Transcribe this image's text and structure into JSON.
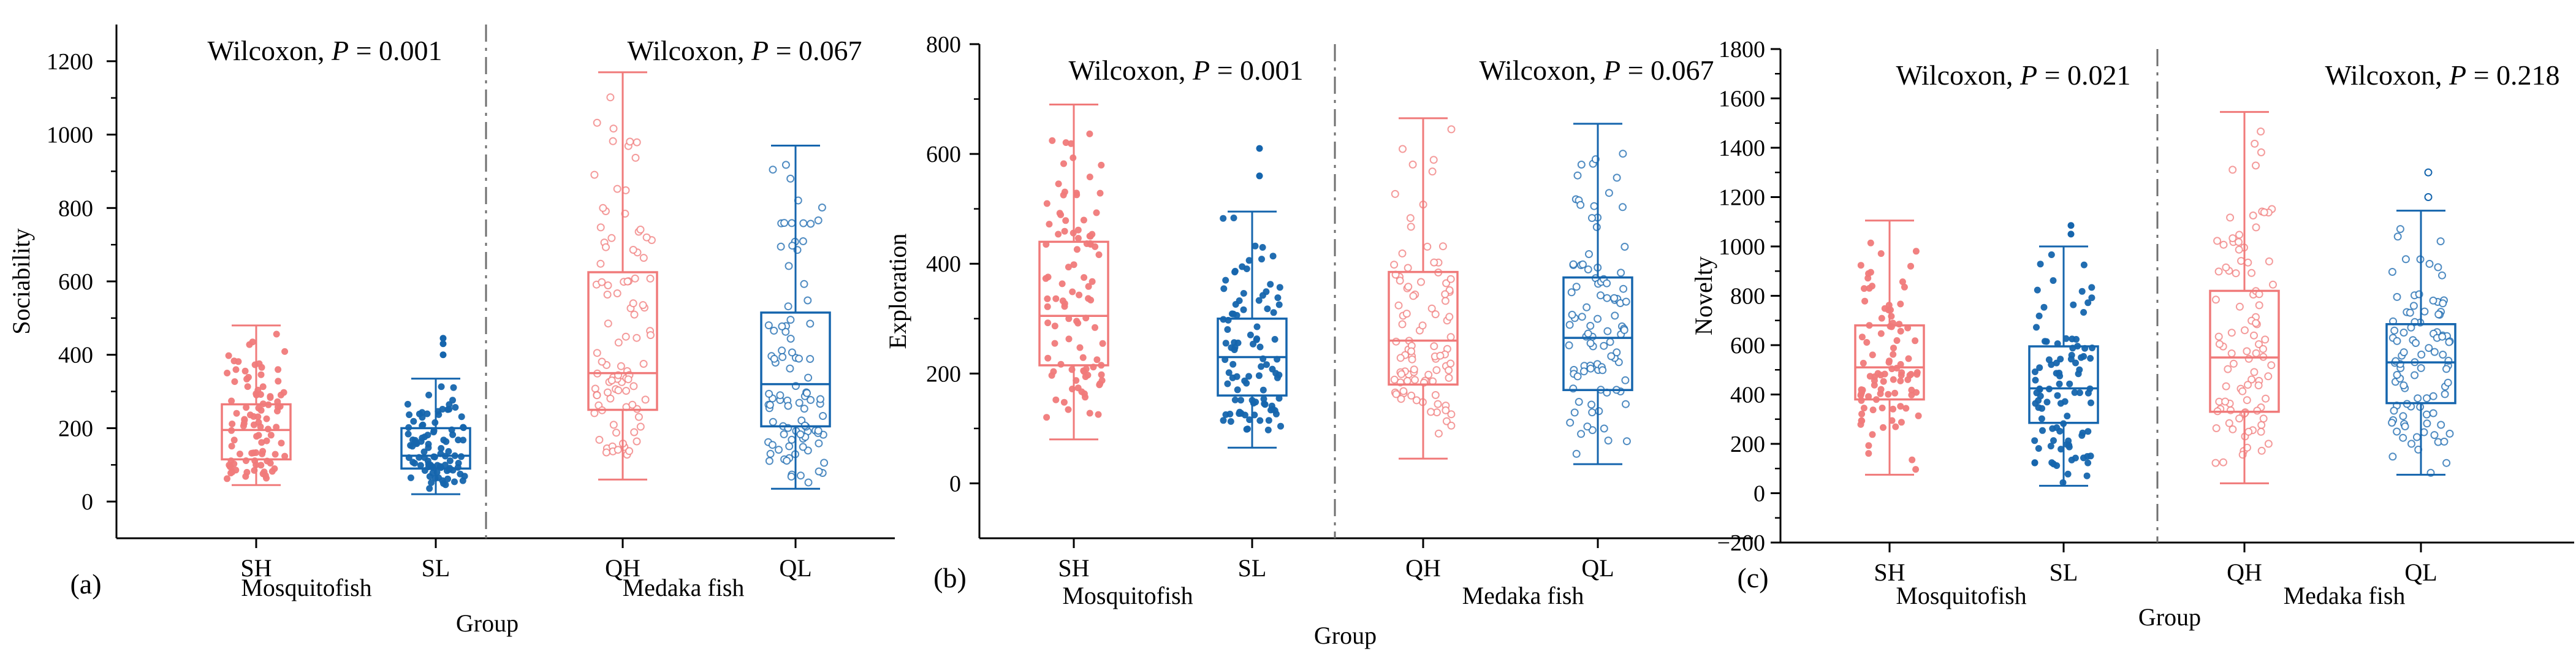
{
  "chart_data": [
    {
      "type": "box",
      "panel_label": "(a)",
      "ylabel": "Sociability",
      "xlabel": "Group",
      "ylim": [
        -100,
        1300
      ],
      "yticks": [
        0,
        200,
        400,
        600,
        800,
        1000,
        1200
      ],
      "yticks_text": [
        "0",
        "200",
        "400",
        "600",
        "800",
        "1000",
        "1200"
      ],
      "categories": [
        "SH",
        "SL",
        "QH",
        "QL"
      ],
      "group_labels": [
        "Mosquitofish",
        "Medaka fish"
      ],
      "annotations": [
        {
          "prefix": "Wilcoxon, ",
          "italic": "P",
          "suffix": " = 0.001"
        },
        {
          "prefix": "Wilcoxon, ",
          "italic": "P",
          "suffix": " = 0.067"
        }
      ],
      "boxes": [
        {
          "min": 45,
          "q1": 115,
          "median": 195,
          "q3": 265,
          "max": 480
        },
        {
          "min": 20,
          "q1": 90,
          "median": 125,
          "q3": 200,
          "max": 335
        },
        {
          "min": 60,
          "q1": 250,
          "median": 350,
          "q3": 625,
          "max": 1170
        },
        {
          "min": 35,
          "q1": 205,
          "median": 320,
          "q3": 515,
          "max": 970
        }
      ],
      "outliers": [
        [],
        [
          400,
          430,
          445
        ],
        [],
        []
      ]
    },
    {
      "type": "box",
      "panel_label": "(b)",
      "ylabel": "Exploration",
      "xlabel": "Group",
      "ylim": [
        -100,
        800
      ],
      "yticks": [
        0,
        200,
        400,
        600,
        800
      ],
      "yticks_text": [
        "0",
        "200",
        "400",
        "600",
        "800"
      ],
      "categories": [
        "SH",
        "SL",
        "QH",
        "QL"
      ],
      "group_labels": [
        "Mosquitofish",
        "Medaka fish"
      ],
      "annotations": [
        {
          "prefix": "Wilcoxon, ",
          "italic": "P",
          "suffix": " = 0.001"
        },
        {
          "prefix": "Wilcoxon, ",
          "italic": "P",
          "suffix": " = 0.067"
        }
      ],
      "boxes": [
        {
          "min": 80,
          "q1": 215,
          "median": 305,
          "q3": 440,
          "max": 690
        },
        {
          "min": 65,
          "q1": 160,
          "median": 230,
          "q3": 300,
          "max": 495
        },
        {
          "min": 45,
          "q1": 180,
          "median": 260,
          "q3": 385,
          "max": 665
        },
        {
          "min": 35,
          "q1": 170,
          "median": 265,
          "q3": 375,
          "max": 655
        }
      ],
      "outliers": [
        [],
        [
          560,
          610
        ],
        [],
        []
      ]
    },
    {
      "type": "box",
      "panel_label": "(c)",
      "ylabel": "Novelty",
      "xlabel": "Group",
      "ylim": [
        -200,
        1800
      ],
      "yticks": [
        -200,
        0,
        200,
        400,
        600,
        800,
        1000,
        1200,
        1400,
        1600,
        1800
      ],
      "yticks_text": [
        "−200",
        "0",
        "200",
        "400",
        "600",
        "800",
        "1000",
        "1200",
        "1400",
        "1600",
        "1800"
      ],
      "categories": [
        "SH",
        "SL",
        "QH",
        "QL"
      ],
      "group_labels": [
        "Mosquitofish",
        "Medaka fish"
      ],
      "annotations": [
        {
          "prefix": "Wilcoxon, ",
          "italic": "P",
          "suffix": " = 0.021"
        },
        {
          "prefix": "Wilcoxon, ",
          "italic": "P",
          "suffix": " = 0.218"
        }
      ],
      "boxes": [
        {
          "min": 75,
          "q1": 380,
          "median": 510,
          "q3": 680,
          "max": 1105
        },
        {
          "min": 30,
          "q1": 285,
          "median": 425,
          "q3": 595,
          "max": 1000
        },
        {
          "min": 40,
          "q1": 330,
          "median": 550,
          "q3": 820,
          "max": 1545
        },
        {
          "min": 75,
          "q1": 365,
          "median": 530,
          "q3": 685,
          "max": 1145
        }
      ],
      "outliers": [
        [],
        [
          1050,
          1085
        ],
        [],
        [
          1200,
          1300
        ]
      ]
    }
  ],
  "colors": {
    "red": "#f07a7a",
    "blue": "#1565ad",
    "axis": "#000000",
    "divider": "#707070"
  }
}
